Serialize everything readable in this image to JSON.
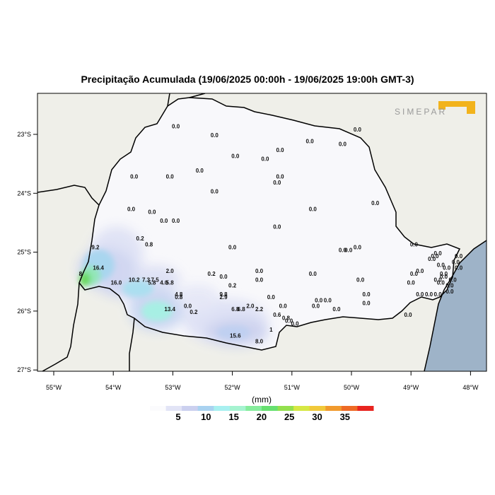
{
  "title": "Precipitação Acumulada (19/06/2025 00:00h - 19/06/2025 19:00h GMT-3)",
  "logo_text": "SIMEPAR",
  "axes": {
    "x_ticks": [
      "55°W",
      "54°W",
      "53°W",
      "52°W",
      "51°W",
      "50°W",
      "49°W",
      "48°W"
    ],
    "y_ticks": [
      "23°S",
      "24°S",
      "25°S",
      "26°S",
      "27°S"
    ]
  },
  "colorbar": {
    "title": "(mm)",
    "ticks": [
      "5",
      "10",
      "15",
      "20",
      "25",
      "30",
      "35"
    ],
    "colors": [
      "#fbfbfd",
      "#e2e4f6",
      "#cbd0ef",
      "#a9d2f0",
      "#a8f0f0",
      "#a6f3d0",
      "#86ec9c",
      "#67e070",
      "#93e04e",
      "#d6e844",
      "#f1c93a",
      "#f19a2d",
      "#ee6a25",
      "#e8241f"
    ]
  },
  "colors": {
    "ocean": "#9eb3c8",
    "land": "#efefe9",
    "state": "#f8f8fb",
    "frame": "#ffffff"
  },
  "stations": [
    {
      "lon": -52.95,
      "lat": -22.9,
      "v": "0.0"
    },
    {
      "lon": -52.3,
      "lat": -23.05,
      "v": "0.0"
    },
    {
      "lon": -51.95,
      "lat": -23.4,
      "v": "0.0"
    },
    {
      "lon": -51.45,
      "lat": -23.45,
      "v": "0.0"
    },
    {
      "lon": -51.2,
      "lat": -23.3,
      "v": "0.0"
    },
    {
      "lon": -50.7,
      "lat": -23.15,
      "v": "0.0"
    },
    {
      "lon": -50.15,
      "lat": -23.2,
      "v": "0.0"
    },
    {
      "lon": -49.9,
      "lat": -22.95,
      "v": "0.0"
    },
    {
      "lon": -53.65,
      "lat": -23.75,
      "v": "0.0"
    },
    {
      "lon": -53.05,
      "lat": -23.75,
      "v": "0.0"
    },
    {
      "lon": -52.55,
      "lat": -23.65,
      "v": "0.0"
    },
    {
      "lon": -51.2,
      "lat": -23.75,
      "v": "0.0"
    },
    {
      "lon": -51.25,
      "lat": -23.85,
      "v": "0.0"
    },
    {
      "lon": -52.3,
      "lat": -24.0,
      "v": "0.0"
    },
    {
      "lon": -49.6,
      "lat": -24.2,
      "v": "0.0"
    },
    {
      "lon": -53.7,
      "lat": -24.3,
      "v": "0.0"
    },
    {
      "lon": -53.35,
      "lat": -24.35,
      "v": "0.0"
    },
    {
      "lon": -50.65,
      "lat": -24.3,
      "v": "0.0"
    },
    {
      "lon": -53.15,
      "lat": -24.5,
      "v": "0.0"
    },
    {
      "lon": -52.95,
      "lat": -24.5,
      "v": "0.0"
    },
    {
      "lon": -51.25,
      "lat": -24.6,
      "v": "0.0"
    },
    {
      "lon": -53.55,
      "lat": -24.8,
      "v": "0.2"
    },
    {
      "lon": -53.4,
      "lat": -24.9,
      "v": "0.8"
    },
    {
      "lon": -54.3,
      "lat": -24.95,
      "v": "9.2"
    },
    {
      "lon": -52.0,
      "lat": -24.95,
      "v": "0.0"
    },
    {
      "lon": -48.95,
      "lat": -24.9,
      "v": "0.0"
    },
    {
      "lon": -50.15,
      "lat": -25.0,
      "v": "0.0"
    },
    {
      "lon": -50.05,
      "lat": -25.0,
      "v": "0.0"
    },
    {
      "lon": -49.9,
      "lat": -24.95,
      "v": "0.0"
    },
    {
      "lon": -54.25,
      "lat": -25.3,
      "v": "16.4"
    },
    {
      "lon": -54.55,
      "lat": -25.4,
      "v": "8"
    },
    {
      "lon": -53.05,
      "lat": -25.35,
      "v": "2.0"
    },
    {
      "lon": -52.35,
      "lat": -25.4,
      "v": "0.2"
    },
    {
      "lon": -52.15,
      "lat": -25.45,
      "v": "0.0"
    },
    {
      "lon": -51.55,
      "lat": -25.35,
      "v": "0.0"
    },
    {
      "lon": -50.65,
      "lat": -25.4,
      "v": "0.0"
    },
    {
      "lon": -53.65,
      "lat": -25.5,
      "v": "10.2"
    },
    {
      "lon": -53.45,
      "lat": -25.5,
      "v": "7.3"
    },
    {
      "lon": -53.3,
      "lat": -25.5,
      "v": "7.5"
    },
    {
      "lon": -53.35,
      "lat": -25.55,
      "v": "5.8"
    },
    {
      "lon": -53.15,
      "lat": -25.55,
      "v": "4.0"
    },
    {
      "lon": -53.05,
      "lat": -25.55,
      "v": "5.8"
    },
    {
      "lon": -53.95,
      "lat": -25.55,
      "v": "16.0"
    },
    {
      "lon": -51.55,
      "lat": -25.5,
      "v": "0.0"
    },
    {
      "lon": -52.0,
      "lat": -25.6,
      "v": "0.2"
    },
    {
      "lon": -49.85,
      "lat": -25.5,
      "v": "0.0"
    },
    {
      "lon": -52.9,
      "lat": -25.75,
      "v": "4.8"
    },
    {
      "lon": -52.9,
      "lat": -25.8,
      "v": "0.8"
    },
    {
      "lon": -52.15,
      "lat": -25.75,
      "v": "9.8"
    },
    {
      "lon": -52.15,
      "lat": -25.8,
      "v": "2.9"
    },
    {
      "lon": -51.35,
      "lat": -25.8,
      "v": "0.0"
    },
    {
      "lon": -49.75,
      "lat": -25.75,
      "v": "0.0"
    },
    {
      "lon": -52.75,
      "lat": -25.95,
      "v": "0.0"
    },
    {
      "lon": -53.05,
      "lat": -26.0,
      "v": "13.4"
    },
    {
      "lon": -52.65,
      "lat": -26.05,
      "v": "0.2"
    },
    {
      "lon": -51.95,
      "lat": -26.0,
      "v": "6.8"
    },
    {
      "lon": -51.85,
      "lat": -26.0,
      "v": "6.8"
    },
    {
      "lon": -51.7,
      "lat": -25.95,
      "v": "2.0"
    },
    {
      "lon": -51.55,
      "lat": -26.0,
      "v": "2.2"
    },
    {
      "lon": -51.15,
      "lat": -25.95,
      "v": "0.0"
    },
    {
      "lon": -50.55,
      "lat": -25.85,
      "v": "0.0"
    },
    {
      "lon": -50.4,
      "lat": -25.85,
      "v": "0.0"
    },
    {
      "lon": -50.6,
      "lat": -25.95,
      "v": "0.0"
    },
    {
      "lon": -50.25,
      "lat": -26.0,
      "v": "0.0"
    },
    {
      "lon": -49.75,
      "lat": -25.9,
      "v": "0.0"
    },
    {
      "lon": -51.25,
      "lat": -26.1,
      "v": "0.6"
    },
    {
      "lon": -51.1,
      "lat": -26.15,
      "v": "0.8"
    },
    {
      "lon": -51.05,
      "lat": -26.2,
      "v": "0.0"
    },
    {
      "lon": -50.95,
      "lat": -26.25,
      "v": "0.0"
    },
    {
      "lon": -51.35,
      "lat": -26.35,
      "v": "1"
    },
    {
      "lon": -51.95,
      "lat": -26.45,
      "v": "15.6"
    },
    {
      "lon": -51.55,
      "lat": -26.55,
      "v": "8.0"
    },
    {
      "lon": -49.05,
      "lat": -26.1,
      "v": "0.0"
    },
    {
      "lon": -49.0,
      "lat": -25.55,
      "v": "0.0"
    },
    {
      "lon": -48.95,
      "lat": -25.4,
      "v": "0.0"
    },
    {
      "lon": -48.85,
      "lat": -25.35,
      "v": "0.0"
    },
    {
      "lon": -48.65,
      "lat": -25.15,
      "v": "0.0"
    },
    {
      "lon": -48.6,
      "lat": -25.1,
      "v": "0.0"
    },
    {
      "lon": -48.55,
      "lat": -25.05,
      "v": "0.0"
    },
    {
      "lon": -48.5,
      "lat": -25.25,
      "v": "0.0"
    },
    {
      "lon": -48.4,
      "lat": -25.3,
      "v": "0.0"
    },
    {
      "lon": -48.45,
      "lat": -25.4,
      "v": "0.0"
    },
    {
      "lon": -48.55,
      "lat": -25.5,
      "v": "0.0"
    },
    {
      "lon": -48.5,
      "lat": -25.55,
      "v": "0.0"
    },
    {
      "lon": -48.45,
      "lat": -25.45,
      "v": "0.0"
    },
    {
      "lon": -48.35,
      "lat": -25.6,
      "v": "0.0"
    },
    {
      "lon": -48.3,
      "lat": -25.5,
      "v": "0.0"
    },
    {
      "lon": -48.25,
      "lat": -25.2,
      "v": "0.0"
    },
    {
      "lon": -48.2,
      "lat": -25.1,
      "v": "0.0"
    },
    {
      "lon": -48.2,
      "lat": -25.3,
      "v": "0.0"
    },
    {
      "lon": -48.85,
      "lat": -25.75,
      "v": "0.0"
    },
    {
      "lon": -48.7,
      "lat": -25.75,
      "v": "0.0"
    },
    {
      "lon": -48.55,
      "lat": -25.75,
      "v": "0.0"
    },
    {
      "lon": -48.35,
      "lat": -25.7,
      "v": "0.0"
    }
  ]
}
